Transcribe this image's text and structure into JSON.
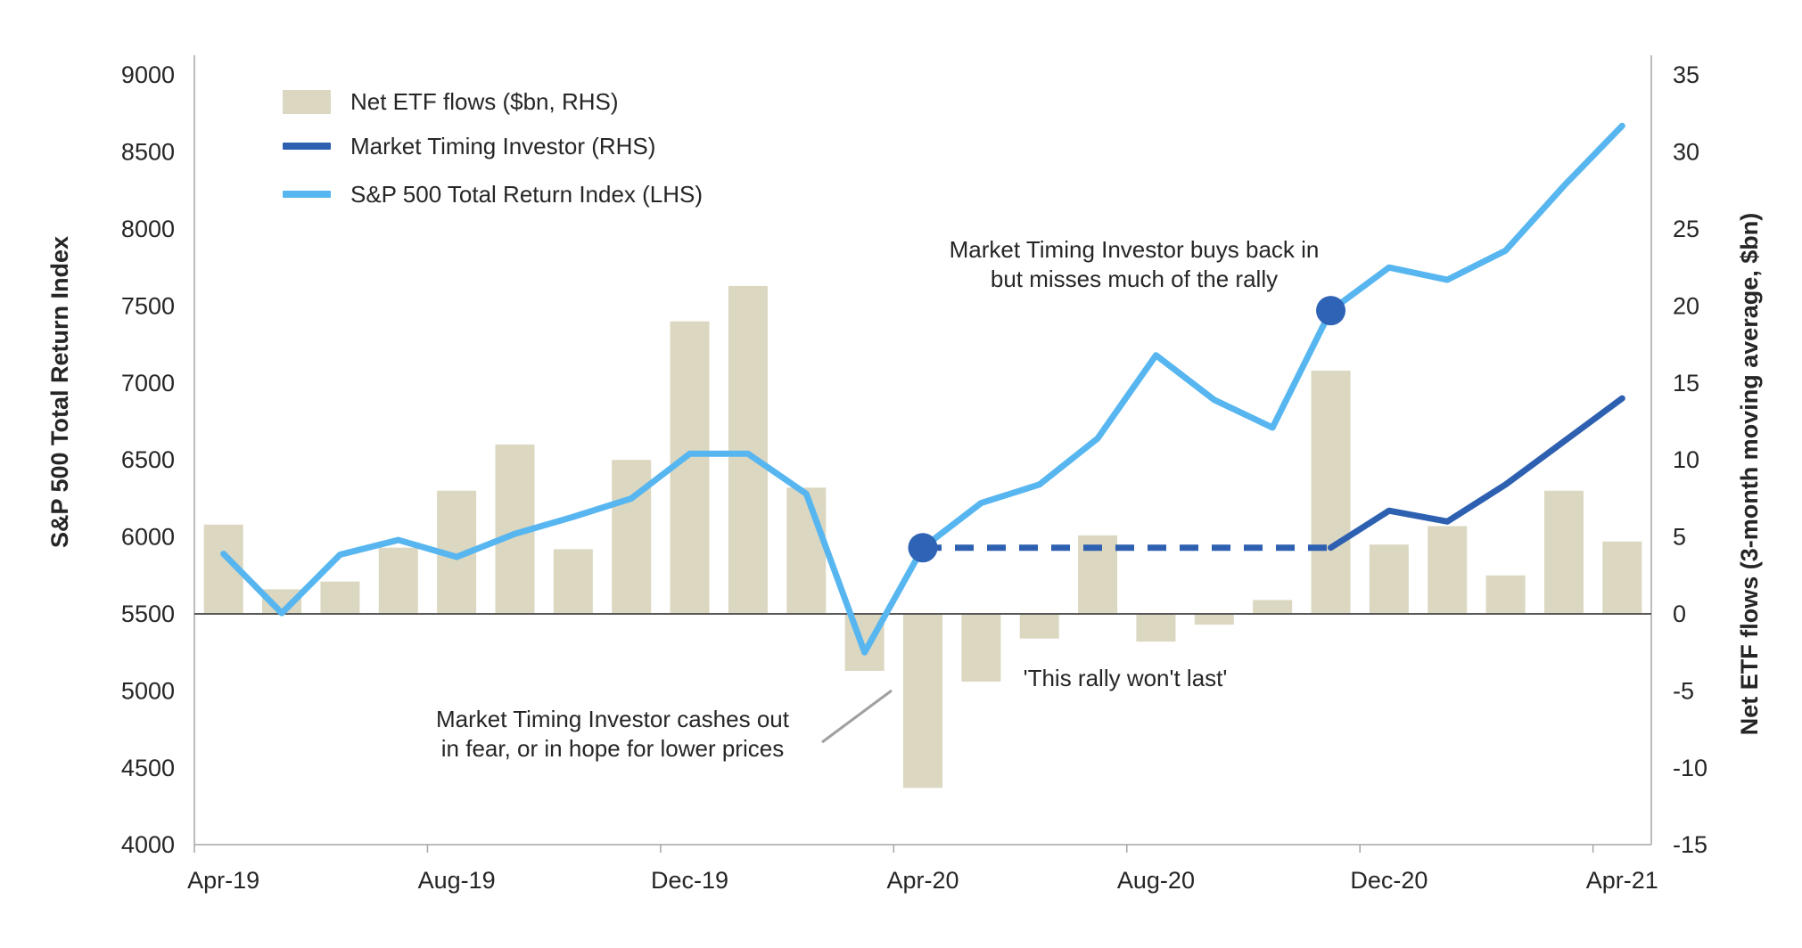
{
  "legend": {
    "items": [
      {
        "label": "Net ETF flows ($bn, RHS)"
      },
      {
        "label": "Market Timing Investor (RHS)"
      },
      {
        "label": "S&P 500 Total Return Index (LHS)"
      }
    ]
  },
  "left_axis": {
    "title": "S&P 500 Total Return Index",
    "ticks": [
      9000,
      8500,
      8000,
      7500,
      7000,
      6500,
      6000,
      5500,
      5000,
      4500,
      4000
    ]
  },
  "right_axis": {
    "title": "Net ETF flows (3-month moving average, $bn)",
    "ticks": [
      35,
      30,
      25,
      20,
      15,
      10,
      5,
      0,
      -5,
      -10,
      -15
    ]
  },
  "x_axis": {
    "labels": [
      "Apr-19",
      "Aug-19",
      "Dec-19",
      "Apr-20",
      "Aug-20",
      "Dec-20",
      "Apr-21"
    ]
  },
  "annotations": {
    "buys_back_line1": "Market Timing Investor buys back in",
    "buys_back_line2": "but misses much of the rally",
    "rally": "'This rally won't last'",
    "cashes_out_line1": "Market Timing Investor cashes out",
    "cashes_out_line2": "in fear, or in hope for lower prices"
  },
  "colors": {
    "bar": "#DBD7C0",
    "sp500": "#57B6F0",
    "mti": "#2D60B0",
    "marker": "#2E63B5",
    "axis_line": "#A6A6A6",
    "zero_line": "#595959",
    "leader_line": "#A0A0A0",
    "text": "#262626"
  },
  "chart_data": {
    "type": "bar",
    "categories": [
      "Apr-19",
      "May-19",
      "Jun-19",
      "Jul-19",
      "Aug-19",
      "Sep-19",
      "Oct-19",
      "Nov-19",
      "Dec-19",
      "Jan-20",
      "Feb-20",
      "Mar-20",
      "Apr-20",
      "May-20",
      "Jun-20",
      "Jul-20",
      "Aug-20",
      "Sep-20",
      "Oct-20",
      "Nov-20",
      "Dec-20",
      "Jan-21",
      "Feb-21",
      "Mar-21",
      "Apr-21"
    ],
    "title": "",
    "xlabel": "",
    "ylabel_left": "S&P 500 Total Return Index",
    "ylabel_right": "Net ETF flows (3-month moving average, $bn)",
    "left_axis_range": [
      4000,
      9000
    ],
    "right_axis_range": [
      -15,
      35
    ],
    "grid": false,
    "legend_position": "top-left-inside",
    "series": [
      {
        "name": "Net ETF flows ($bn, RHS)",
        "type": "bar",
        "axis": "right",
        "values": [
          5.8,
          1.6,
          2.1,
          4.3,
          8.0,
          11.0,
          4.2,
          10.0,
          19.0,
          21.3,
          8.2,
          -3.7,
          -11.3,
          -4.4,
          -1.6,
          5.1,
          -1.8,
          -0.7,
          0.9,
          15.8,
          4.5,
          5.7,
          2.5,
          8.0,
          4.7
        ]
      },
      {
        "name": "S&P 500 Total Return Index (LHS)",
        "type": "line",
        "axis": "left",
        "values": [
          5890,
          5505,
          5885,
          5980,
          5870,
          6020,
          6130,
          6250,
          6540,
          6540,
          6280,
          5250,
          5930,
          6220,
          6340,
          6640,
          7180,
          6890,
          6710,
          7470,
          7750,
          7670,
          7860,
          8280,
          8670
        ]
      },
      {
        "name": "Market Timing Investor (RHS)",
        "type": "line",
        "axis": "right",
        "dashed_from": "Apr-20",
        "dashed_to": "Nov-20",
        "values": [
          null,
          null,
          null,
          null,
          null,
          null,
          null,
          null,
          null,
          null,
          null,
          null,
          4.3,
          4.3,
          4.3,
          4.3,
          4.3,
          4.3,
          4.3,
          4.3,
          6.7,
          6.0,
          8.4,
          11.2,
          14.0
        ]
      }
    ],
    "markers": [
      {
        "category": "Apr-20",
        "axis": "left",
        "value": 5930,
        "meaning": "Market Timing Investor cashes out"
      },
      {
        "category": "Nov-20",
        "axis": "left",
        "value": 7470,
        "meaning": "Market Timing Investor buys back in"
      }
    ]
  }
}
